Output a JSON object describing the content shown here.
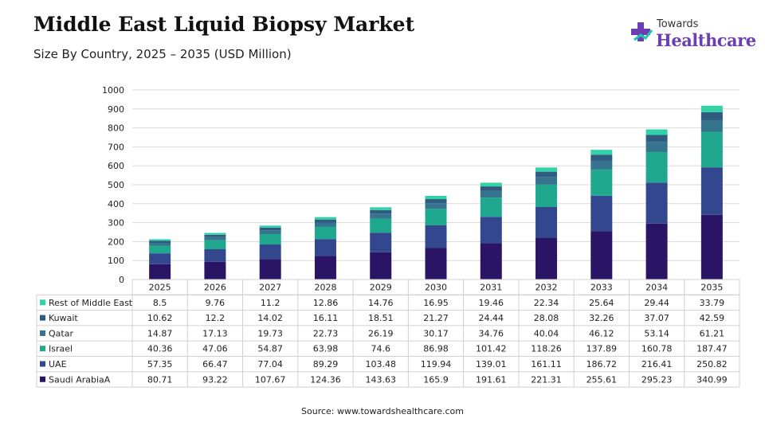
{
  "header": {
    "title": "Middle East Liquid Biopsy Market",
    "subtitle": "Size By Country, 2025 – 2035 (USD Million)"
  },
  "logo": {
    "top_text": "Towards",
    "main_text": "Healthcare",
    "colors": {
      "purple": "#6b3fb3",
      "teal": "#1fc7b0"
    }
  },
  "footer": {
    "source": "Source: www.towardshealthcare.com"
  },
  "chart_data": {
    "type": "bar",
    "stacked": true,
    "categories": [
      "2025",
      "2026",
      "2027",
      "2028",
      "2029",
      "2030",
      "2031",
      "2032",
      "2033",
      "2034",
      "2035"
    ],
    "ylim": [
      0,
      1000
    ],
    "yticks": [
      0,
      100,
      200,
      300,
      400,
      500,
      600,
      700,
      800,
      900,
      1000
    ],
    "grid": true,
    "legend_placement": "data table below chart",
    "series": [
      {
        "name": "Saudi ArabiaA",
        "color": "#2a1466",
        "values": [
          80.71,
          93.22,
          107.67,
          124.36,
          143.63,
          165.9,
          191.61,
          221.31,
          255.61,
          295.23,
          340.99
        ]
      },
      {
        "name": "UAE",
        "color": "#33478f",
        "values": [
          57.35,
          66.47,
          77.04,
          89.29,
          103.48,
          119.94,
          139.01,
          161.11,
          186.72,
          216.41,
          250.82
        ]
      },
      {
        "name": "Israel",
        "color": "#1fa88e",
        "values": [
          40.36,
          47.06,
          54.87,
          63.98,
          74.6,
          86.98,
          101.42,
          118.26,
          137.89,
          160.78,
          187.47
        ]
      },
      {
        "name": "Qatar",
        "color": "#35738f",
        "values": [
          14.87,
          17.13,
          19.73,
          22.73,
          26.19,
          30.17,
          34.76,
          40.04,
          46.12,
          53.14,
          61.21
        ]
      },
      {
        "name": "Kuwait",
        "color": "#2f5b80",
        "values": [
          10.62,
          12.2,
          14.02,
          16.11,
          18.51,
          21.27,
          24.44,
          28.08,
          32.26,
          37.07,
          42.59
        ]
      },
      {
        "name": "Rest of Middle East",
        "color": "#33d1a6",
        "values": [
          8.5,
          9.76,
          11.2,
          12.86,
          14.76,
          16.95,
          19.46,
          22.34,
          25.64,
          29.44,
          33.79
        ]
      }
    ],
    "table_row_order": [
      "Rest of Middle East",
      "Kuwait",
      "Qatar",
      "Israel",
      "UAE",
      "Saudi ArabiaA"
    ]
  }
}
